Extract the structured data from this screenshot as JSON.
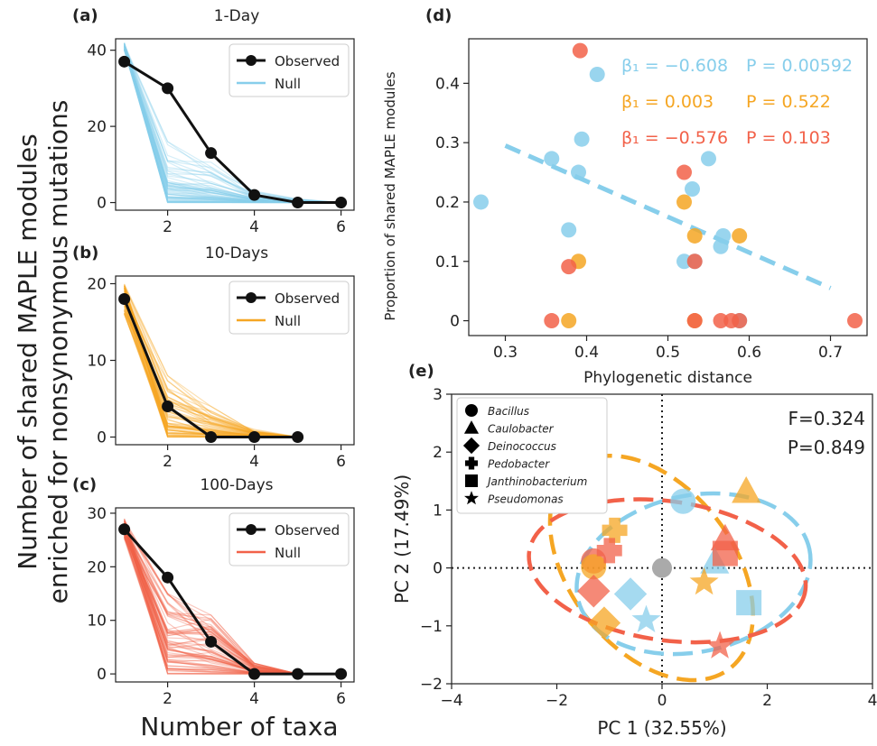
{
  "figure": {
    "ylabel_line1": "Number of shared MAPLE modules",
    "ylabel_line2": "enriched for nonsynonymous mutations",
    "xlabel": "Number of taxa"
  },
  "colors": {
    "blue": "#87CEEB",
    "orange": "#F5A623",
    "red": "#F26149",
    "observed": "#111111",
    "gray": "#AAAAAA"
  },
  "chart_data": [
    {
      "id": "a",
      "panel_label": "a",
      "type": "line",
      "title": "1-Day",
      "x": [
        1,
        2,
        3,
        4,
        5,
        6
      ],
      "xticks": [
        2,
        4,
        6
      ],
      "yticks": [
        0,
        20,
        40
      ],
      "xlim": [
        0.8,
        6.3
      ],
      "ylim": [
        -2,
        43
      ],
      "series": [
        {
          "name": "Observed",
          "values": [
            37,
            30,
            13,
            2,
            0,
            0
          ]
        },
        {
          "name": "Null",
          "values_range": {
            "min": [
              40,
              0,
              0,
              0,
              0,
              0
            ],
            "max": [
              42,
              16,
              11,
              3,
              1,
              0
            ]
          }
        }
      ],
      "legend": "top-right"
    },
    {
      "id": "b",
      "panel_label": "b",
      "type": "line",
      "title": "10-Days",
      "x": [
        1,
        2,
        3,
        4,
        5
      ],
      "xticks": [
        2,
        4,
        6
      ],
      "yticks": [
        0,
        10,
        20
      ],
      "xlim": [
        0.8,
        6.3
      ],
      "ylim": [
        -1,
        21
      ],
      "series": [
        {
          "name": "Observed",
          "values": [
            18,
            4,
            0,
            0,
            0
          ]
        },
        {
          "name": "Null",
          "values_range": {
            "min": [
              16,
              0,
              0,
              0,
              0
            ],
            "max": [
              20,
              8,
              4,
              1,
              0
            ]
          }
        }
      ],
      "legend": "top-right"
    },
    {
      "id": "c",
      "panel_label": "c",
      "type": "line",
      "title": "100-Days",
      "x": [
        1,
        2,
        3,
        4,
        5,
        6
      ],
      "xticks": [
        2,
        4,
        6
      ],
      "yticks": [
        0,
        10,
        20,
        30
      ],
      "xlim": [
        0.8,
        6.3
      ],
      "ylim": [
        -1.5,
        31
      ],
      "series": [
        {
          "name": "Observed",
          "values": [
            27,
            18,
            6,
            0,
            0,
            0
          ]
        },
        {
          "name": "Null",
          "values_range": {
            "min": [
              25,
              0,
              0,
              0,
              0,
              0
            ],
            "max": [
              29,
              15,
              11,
              2,
              0,
              0
            ]
          }
        }
      ],
      "legend": "top-right"
    },
    {
      "id": "d",
      "panel_label": "d",
      "type": "scatter",
      "xlabel": "Phylogenetic distance",
      "ylabel": "Proportion of shared MAPLE modules",
      "xticks": [
        0.3,
        0.4,
        0.5,
        0.6,
        0.7
      ],
      "yticks": [
        0.0,
        0.1,
        0.2,
        0.3,
        0.4
      ],
      "xlim": [
        0.255,
        0.745
      ],
      "ylim": [
        -0.025,
        0.475
      ],
      "annotations": [
        {
          "beta": "β₁ = −0.608",
          "p": "P = 0.00592",
          "color": "blue"
        },
        {
          "beta": "β₁ = 0.003",
          "p": "P = 0.522",
          "color": "orange"
        },
        {
          "beta": "β₁ = −0.576",
          "p": "P = 0.103",
          "color": "red"
        }
      ],
      "fit_line": {
        "color": "blue",
        "x": [
          0.3,
          0.7
        ],
        "y": [
          0.295,
          0.055
        ]
      },
      "series": [
        {
          "color": "blue",
          "points": [
            [
              0.27,
              0.2
            ],
            [
              0.357,
              0.273
            ],
            [
              0.378,
              0.153
            ],
            [
              0.39,
              0.25
            ],
            [
              0.394,
              0.306
            ],
            [
              0.413,
              0.415
            ],
            [
              0.53,
              0.222
            ],
            [
              0.55,
              0.273
            ],
            [
              0.565,
              0.125
            ],
            [
              0.568,
              0.143
            ],
            [
              0.52,
              0.1
            ],
            [
              0.533,
              0.1
            ],
            [
              0.588,
              0.0
            ]
          ]
        },
        {
          "color": "orange",
          "points": [
            [
              0.378,
              0.0
            ],
            [
              0.39,
              0.1
            ],
            [
              0.52,
              0.2
            ],
            [
              0.533,
              0.143
            ],
            [
              0.588,
              0.143
            ],
            [
              0.533,
              0.0
            ]
          ]
        },
        {
          "color": "red",
          "points": [
            [
              0.392,
              0.455
            ],
            [
              0.378,
              0.091
            ],
            [
              0.52,
              0.25
            ],
            [
              0.533,
              0.1
            ],
            [
              0.357,
              0.0
            ],
            [
              0.533,
              0.0
            ],
            [
              0.565,
              0.0
            ],
            [
              0.578,
              0.0
            ],
            [
              0.588,
              0.0
            ],
            [
              0.73,
              0.0
            ]
          ]
        }
      ]
    },
    {
      "id": "e",
      "panel_label": "e",
      "type": "scatter",
      "xlabel": "PC 1 (32.55%)",
      "ylabel": "PC 2 (17.49%)",
      "xticks": [
        -4,
        -2,
        0,
        2,
        4
      ],
      "yticks": [
        -2,
        -1,
        0,
        1,
        2,
        3
      ],
      "xlim": [
        -4,
        4
      ],
      "ylim": [
        -2,
        3
      ],
      "stats": [
        "F=0.324",
        "P=0.849"
      ],
      "legend_entries": [
        {
          "label": "Bacillus",
          "shape": "circle"
        },
        {
          "label": "Caulobacter",
          "shape": "triangle"
        },
        {
          "label": "Deinococcus",
          "shape": "diamond"
        },
        {
          "label": "Pedobacter",
          "shape": "plus"
        },
        {
          "label": "Janthinobacterium",
          "shape": "square"
        },
        {
          "label": "Pseudomonas",
          "shape": "star"
        }
      ],
      "origin_point": {
        "x": 0,
        "y": 0,
        "color": "gray"
      },
      "ellipses": [
        {
          "color": "orange",
          "cx": -0.2,
          "cy": 0.0,
          "rx": 1.55,
          "ry": 2.2,
          "angle": -38
        },
        {
          "color": "blue",
          "cx": 0.6,
          "cy": -0.1,
          "rx": 2.25,
          "ry": 1.35,
          "angle": -12
        },
        {
          "color": "red",
          "cx": 0.1,
          "cy": -0.05,
          "rx": 2.65,
          "ry": 1.2,
          "angle": 8
        }
      ],
      "points": [
        {
          "x": -1.3,
          "y": 0.12,
          "shape": "circle",
          "color": "red"
        },
        {
          "x": -1.3,
          "y": 0.02,
          "shape": "circle",
          "color": "orange"
        },
        {
          "x": 0.4,
          "y": 1.15,
          "shape": "circle",
          "color": "blue"
        },
        {
          "x": 1.6,
          "y": 1.32,
          "shape": "triangle",
          "color": "orange"
        },
        {
          "x": 1.2,
          "y": 0.5,
          "shape": "triangle",
          "color": "red"
        },
        {
          "x": 1.0,
          "y": 0.1,
          "shape": "triangle",
          "color": "blue"
        },
        {
          "x": -1.3,
          "y": -0.4,
          "shape": "diamond",
          "color": "red"
        },
        {
          "x": -0.6,
          "y": -0.45,
          "shape": "diamond",
          "color": "blue"
        },
        {
          "x": -1.1,
          "y": -0.95,
          "shape": "diamond",
          "color": "orange"
        },
        {
          "x": -0.9,
          "y": 0.65,
          "shape": "plus",
          "color": "orange"
        },
        {
          "x": -1.0,
          "y": 0.3,
          "shape": "plus",
          "color": "red"
        },
        {
          "x": 1.2,
          "y": 0.25,
          "shape": "square",
          "color": "red"
        },
        {
          "x": 1.65,
          "y": -0.6,
          "shape": "square",
          "color": "blue"
        },
        {
          "x": 0.8,
          "y": -0.25,
          "shape": "star",
          "color": "orange"
        },
        {
          "x": -0.3,
          "y": -0.9,
          "shape": "star",
          "color": "blue"
        },
        {
          "x": 1.1,
          "y": -1.35,
          "shape": "star",
          "color": "red"
        }
      ]
    }
  ]
}
